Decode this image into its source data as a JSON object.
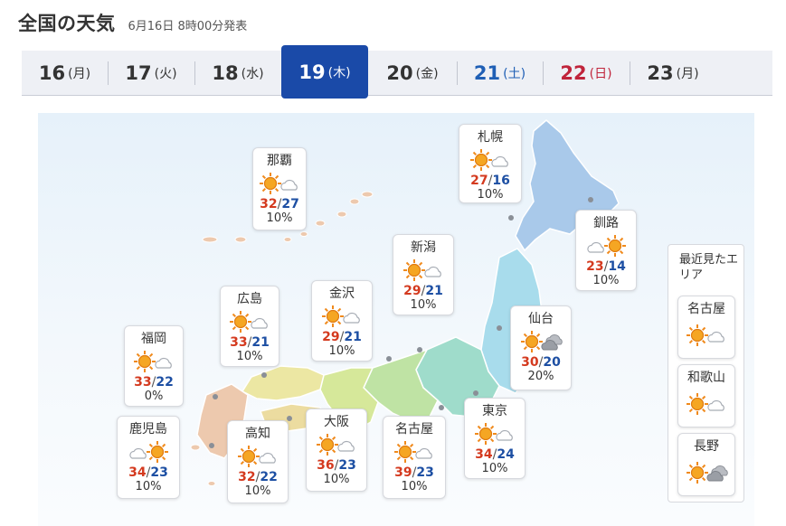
{
  "header": {
    "title": "全国の天気",
    "published": "6月16日 8時00分発表"
  },
  "tabs": [
    {
      "day": "16",
      "dow": "(月)",
      "type": "normal"
    },
    {
      "day": "17",
      "dow": "(火)",
      "type": "normal"
    },
    {
      "day": "18",
      "dow": "(水)",
      "type": "normal"
    },
    {
      "day": "19",
      "dow": "(木)",
      "type": "active"
    },
    {
      "day": "20",
      "dow": "(金)",
      "type": "normal"
    },
    {
      "day": "21",
      "dow": "(土)",
      "type": "sat"
    },
    {
      "day": "22",
      "dow": "(日)",
      "type": "sun"
    },
    {
      "day": "23",
      "dow": "(月)",
      "type": "normal"
    }
  ],
  "cities": {
    "naha": {
      "name": "那覇",
      "icon": "sunny-then-cloudy-icon",
      "high": "32",
      "low": "27",
      "pop": "10%"
    },
    "sapporo": {
      "name": "札幌",
      "icon": "sunny-then-cloudy-icon",
      "high": "27",
      "low": "16",
      "pop": "10%"
    },
    "kushiro": {
      "name": "釧路",
      "icon": "cloudy-then-sunny-icon",
      "high": "23",
      "low": "14",
      "pop": "10%"
    },
    "niigata": {
      "name": "新潟",
      "icon": "sunny-then-cloudy-icon",
      "high": "29",
      "low": "21",
      "pop": "10%"
    },
    "kanazawa": {
      "name": "金沢",
      "icon": "sunny-then-cloudy-icon",
      "high": "29",
      "low": "21",
      "pop": "10%"
    },
    "hiroshima": {
      "name": "広島",
      "icon": "sunny-then-cloudy-icon",
      "high": "33",
      "low": "21",
      "pop": "10%"
    },
    "sendai": {
      "name": "仙台",
      "icon": "sunny-then-overcast-icon",
      "high": "30",
      "low": "20",
      "pop": "20%"
    },
    "fukuoka": {
      "name": "福岡",
      "icon": "sunny-then-cloudy-icon",
      "high": "33",
      "low": "22",
      "pop": "0%"
    },
    "tokyo": {
      "name": "東京",
      "icon": "sunny-then-cloudy-icon",
      "high": "34",
      "low": "24",
      "pop": "10%"
    },
    "kagoshima": {
      "name": "鹿児島",
      "icon": "cloudy-then-sunny-icon",
      "high": "34",
      "low": "23",
      "pop": "10%"
    },
    "kochi": {
      "name": "高知",
      "icon": "sunny-then-cloudy-icon",
      "high": "32",
      "low": "22",
      "pop": "10%"
    },
    "osaka": {
      "name": "大阪",
      "icon": "sunny-then-cloudy-icon",
      "high": "36",
      "low": "23",
      "pop": "10%"
    },
    "nagoya": {
      "name": "名古屋",
      "icon": "sunny-then-cloudy-icon",
      "high": "39",
      "low": "23",
      "pop": "10%"
    }
  },
  "recent": {
    "title": "最近見たエリア",
    "items": [
      {
        "name": "名古屋",
        "icon": "sunny-then-cloudy-icon"
      },
      {
        "name": "和歌山",
        "icon": "sunny-then-cloudy-icon"
      },
      {
        "name": "長野",
        "icon": "sunny-then-overcast-icon"
      }
    ]
  },
  "colors": {
    "active_tab": "#1a4aa8",
    "saturday": "#1f5fb5",
    "sunday": "#c0243b",
    "high_temp": "#d43a1f",
    "low_temp": "#1d4fa3",
    "sun": "#f08a1c"
  }
}
